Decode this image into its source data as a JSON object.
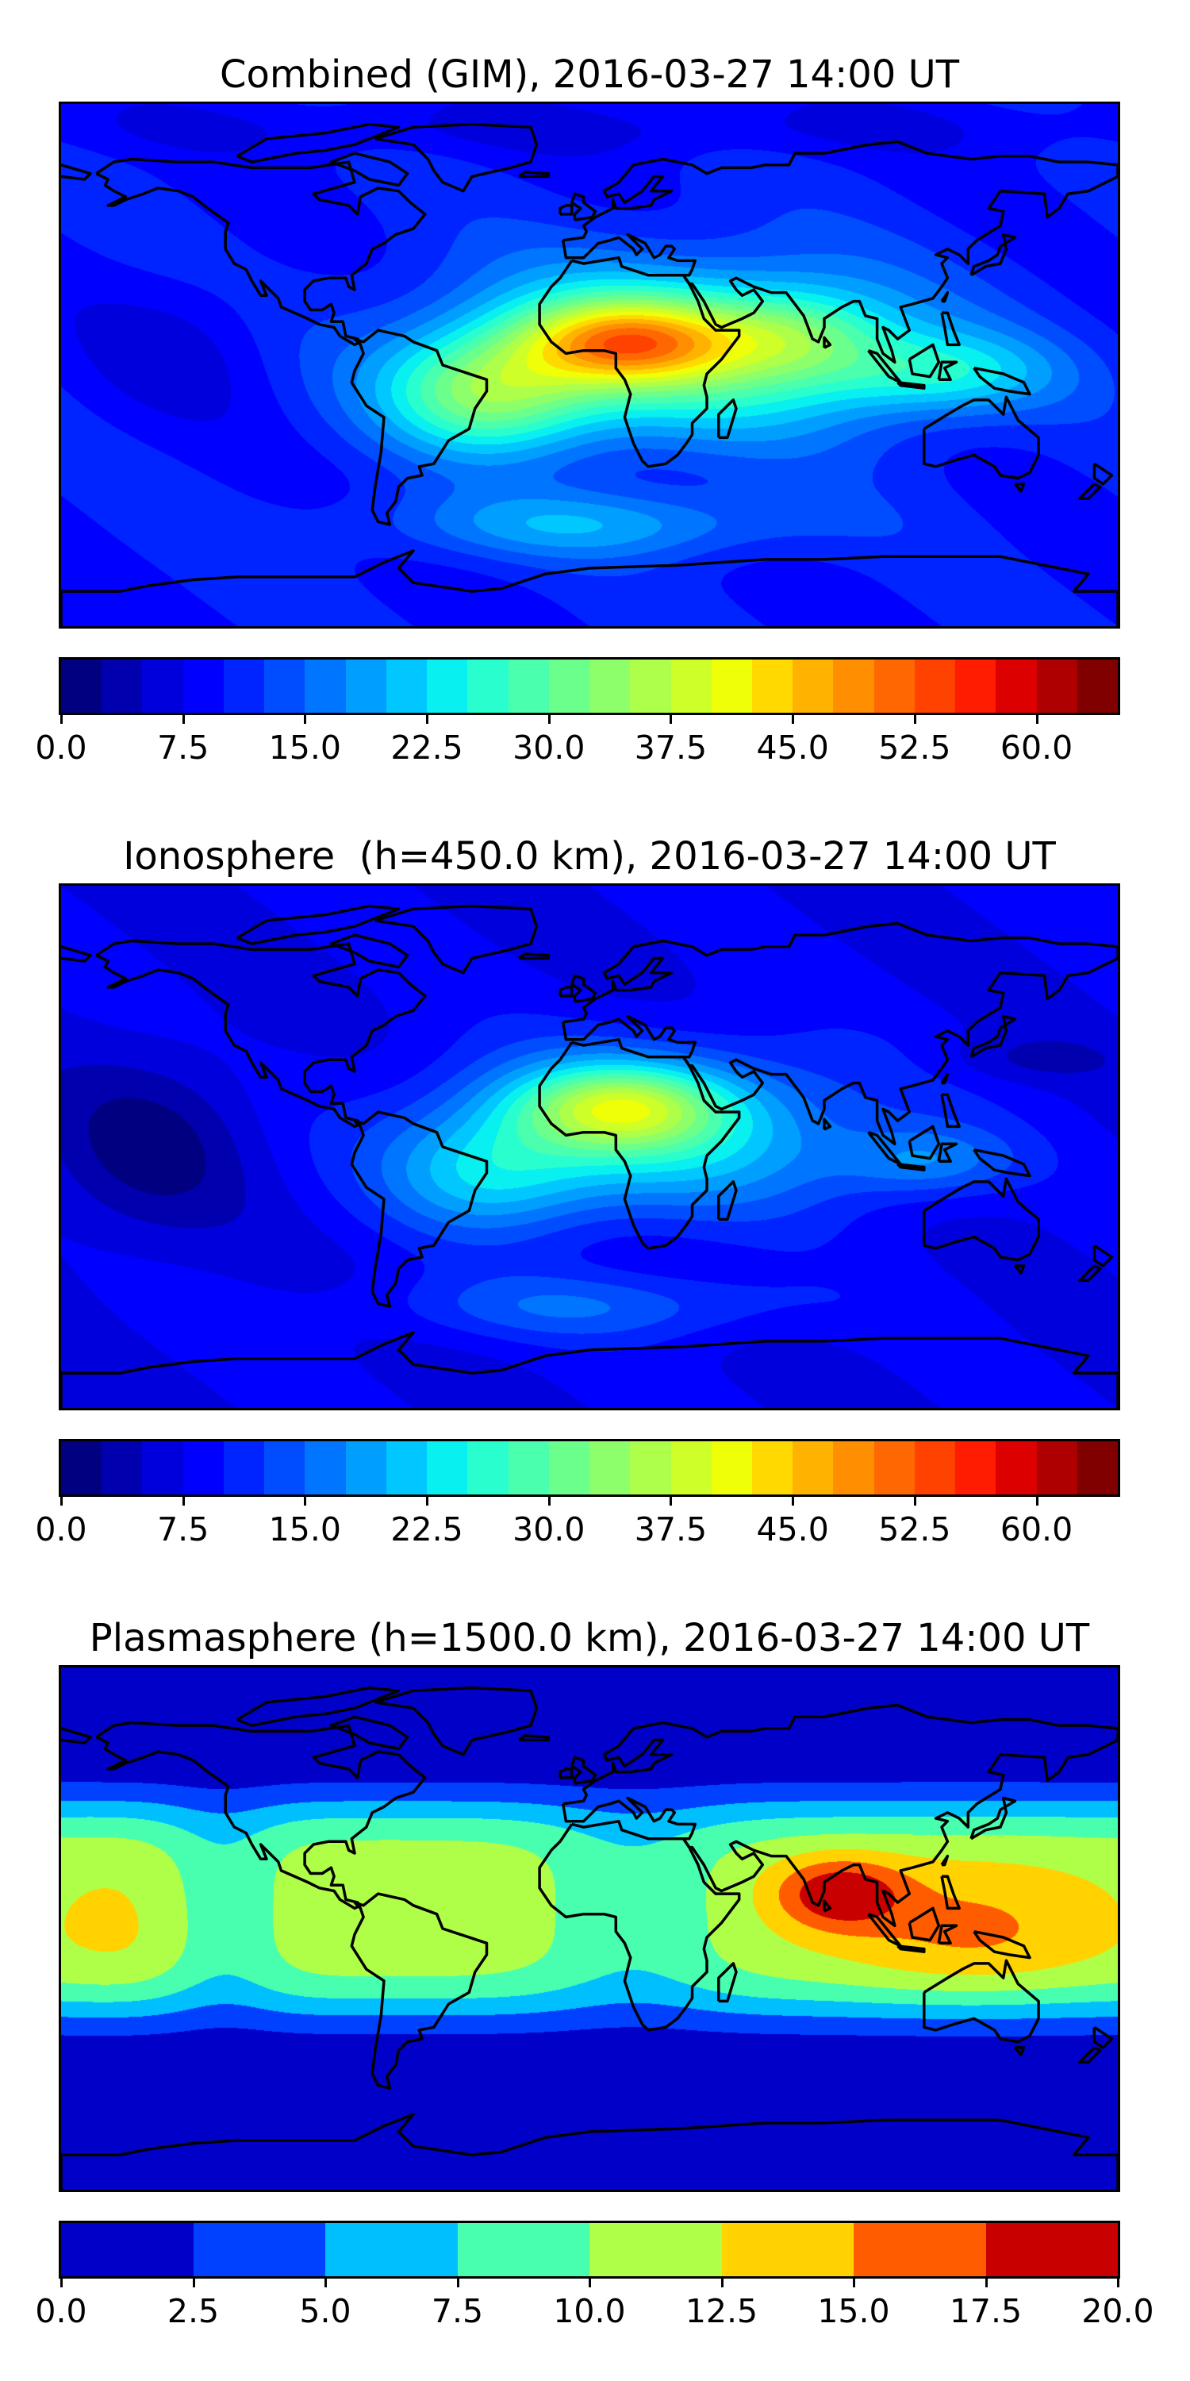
{
  "chart_data": [
    {
      "type": "heatmap",
      "title": "Combined (GIM), 2016-03-27 14:00 UT",
      "projection": "global lon/lat",
      "colorbar": {
        "min": 0,
        "max": 65,
        "step": 2.5,
        "colormap": "jet",
        "ticks": [
          "0.0",
          "7.5",
          "15.0",
          "22.5",
          "30.0",
          "37.5",
          "45.0",
          "52.5",
          "60.0"
        ]
      },
      "peak_region": "equatorial Africa, about 50"
    },
    {
      "type": "heatmap",
      "title": "Ionosphere  (h=450.0 km), 2016-03-27 14:00 UT",
      "projection": "global lon/lat",
      "colorbar": {
        "min": 0,
        "max": 65,
        "step": 2.5,
        "colormap": "jet",
        "ticks": [
          "0.0",
          "7.5",
          "15.0",
          "22.5",
          "30.0",
          "37.5",
          "45.0",
          "52.5",
          "60.0"
        ]
      },
      "peak_region": "North Africa, about 43"
    },
    {
      "type": "heatmap",
      "title": "Plasmasphere (h=1500.0 km), 2016-03-27 14:00 UT",
      "projection": "global lon/lat",
      "colorbar": {
        "min": 0,
        "max": 20,
        "step": 2.5,
        "colormap": "jet",
        "ticks": [
          "0.0",
          "2.5",
          "5.0",
          "7.5",
          "10.0",
          "12.5",
          "15.0",
          "17.5",
          "20.0"
        ]
      },
      "peak_region": "India / Bay of Bengal, about 16"
    }
  ]
}
